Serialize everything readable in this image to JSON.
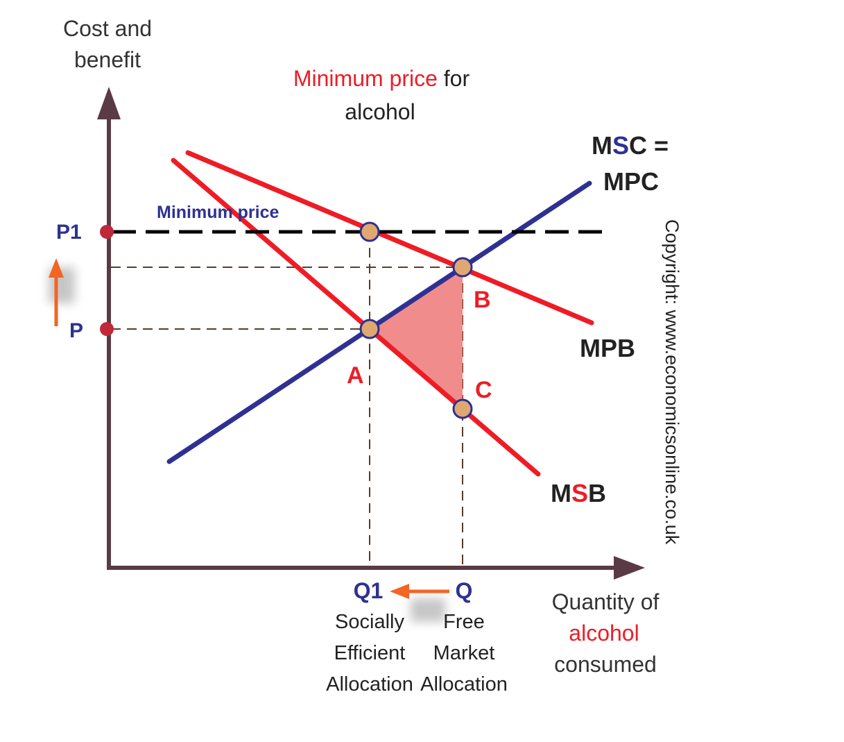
{
  "title": {
    "part1": "Minimum price",
    "part2": " for",
    "line2": "alcohol"
  },
  "y_axis_label": {
    "line1": "Cost and",
    "line2": "benefit"
  },
  "x_axis_label": {
    "line1": "Quantity of",
    "line2": "alcohol",
    "line3": "consumed"
  },
  "curves": {
    "msc_mpc": {
      "line1_pre": "M",
      "line1_s": "S",
      "line1_post": "C =",
      "line2": "MPC"
    },
    "mpb": "MPB",
    "msb": {
      "pre": "M",
      "s": "S",
      "post": "B"
    },
    "minimum_price": "Minimum price"
  },
  "points": {
    "a": "A",
    "b": "B",
    "c": "C"
  },
  "y_ticks": {
    "p1": "P1",
    "p": "P"
  },
  "x_ticks": {
    "q1": "Q1",
    "q": "Q",
    "q1_caption": [
      "Socially",
      "Efficient",
      "Allocation"
    ],
    "q_caption": [
      "Free",
      "Market",
      "Allocation"
    ]
  },
  "copyright": "Copyright: www.economicsonline.co.uk",
  "colors": {
    "red": "#ee1c25",
    "blue": "#2e3192",
    "axis": "#5a3a44",
    "orange": "#f26522",
    "marker_fill": "#e0a870",
    "triangle": "#f08080",
    "dashes": "#5a3a2a"
  }
}
